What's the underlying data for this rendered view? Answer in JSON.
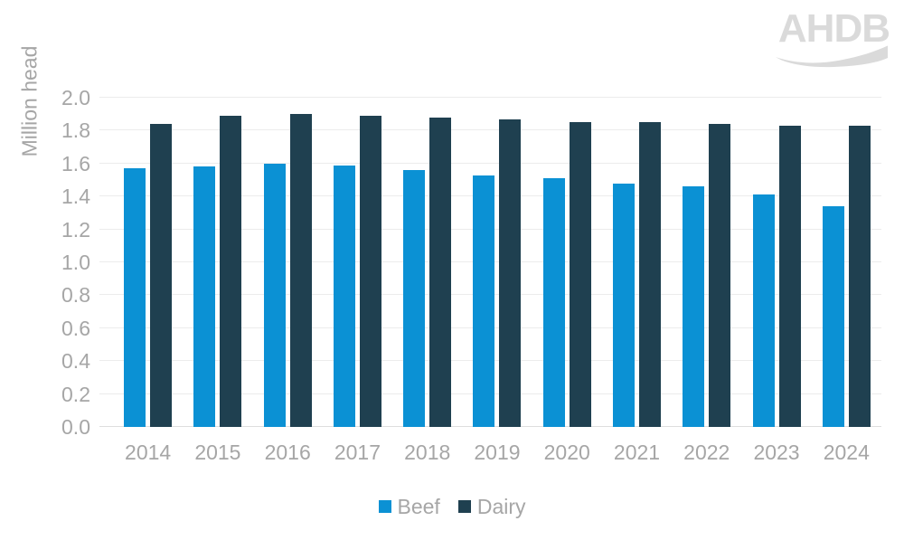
{
  "logo": {
    "text": "AHDB"
  },
  "colors": {
    "beef": "#0b91d4",
    "dairy": "#1f4050",
    "grid": "#ececec",
    "axis_text": "#a6a6a6",
    "logo": "#dadada"
  },
  "chart_data": {
    "type": "bar",
    "title": "",
    "xlabel": "",
    "ylabel": "Million head",
    "categories": [
      "2014",
      "2015",
      "2016",
      "2017",
      "2018",
      "2019",
      "2020",
      "2021",
      "2022",
      "2023",
      "2024"
    ],
    "series": [
      {
        "name": "Beef",
        "color": "#0b91d4",
        "values": [
          1.57,
          1.58,
          1.6,
          1.59,
          1.56,
          1.53,
          1.51,
          1.48,
          1.46,
          1.41,
          1.34
        ]
      },
      {
        "name": "Dairy",
        "color": "#1f4050",
        "values": [
          1.84,
          1.89,
          1.9,
          1.89,
          1.88,
          1.87,
          1.85,
          1.85,
          1.84,
          1.83,
          1.83
        ]
      }
    ],
    "ylim": [
      0.0,
      2.0
    ],
    "ytick_step": 0.2,
    "y_ticks": [
      "0.0",
      "0.2",
      "0.4",
      "0.6",
      "0.8",
      "1.0",
      "1.2",
      "1.4",
      "1.6",
      "1.8",
      "2.0"
    ],
    "grid": "horizontal",
    "legend_position": "bottom",
    "legend": [
      "Beef",
      "Dairy"
    ]
  }
}
